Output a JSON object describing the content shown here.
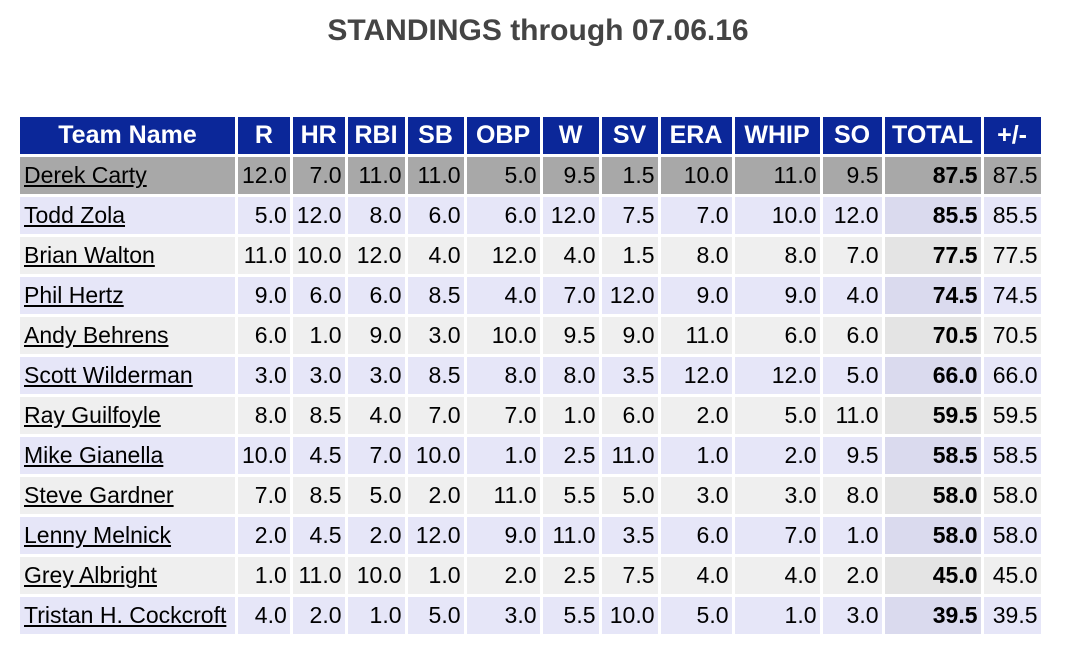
{
  "title": "STANDINGS through 07.06.16",
  "headers": [
    "Team Name",
    "R",
    "HR",
    "RBI",
    "SB",
    "OBP",
    "W",
    "SV",
    "ERA",
    "WHIP",
    "SO",
    "TOTAL",
    "+/-"
  ],
  "rows": [
    {
      "name": "Derek Carty",
      "vals": [
        "12.0",
        "7.0",
        "11.0",
        "11.0",
        "5.0",
        "9.5",
        "1.5",
        "10.0",
        "11.0",
        "9.5"
      ],
      "total": "87.5",
      "pm": "87.5"
    },
    {
      "name": "Todd Zola",
      "vals": [
        "5.0",
        "12.0",
        "8.0",
        "6.0",
        "6.0",
        "12.0",
        "7.5",
        "7.0",
        "10.0",
        "12.0"
      ],
      "total": "85.5",
      "pm": "85.5"
    },
    {
      "name": "Brian Walton",
      "vals": [
        "11.0",
        "10.0",
        "12.0",
        "4.0",
        "12.0",
        "4.0",
        "1.5",
        "8.0",
        "8.0",
        "7.0"
      ],
      "total": "77.5",
      "pm": "77.5"
    },
    {
      "name": "Phil Hertz",
      "vals": [
        "9.0",
        "6.0",
        "6.0",
        "8.5",
        "4.0",
        "7.0",
        "12.0",
        "9.0",
        "9.0",
        "4.0"
      ],
      "total": "74.5",
      "pm": "74.5"
    },
    {
      "name": "Andy Behrens",
      "vals": [
        "6.0",
        "1.0",
        "9.0",
        "3.0",
        "10.0",
        "9.5",
        "9.0",
        "11.0",
        "6.0",
        "6.0"
      ],
      "total": "70.5",
      "pm": "70.5"
    },
    {
      "name": "Scott Wilderman",
      "vals": [
        "3.0",
        "3.0",
        "3.0",
        "8.5",
        "8.0",
        "8.0",
        "3.5",
        "12.0",
        "12.0",
        "5.0"
      ],
      "total": "66.0",
      "pm": "66.0"
    },
    {
      "name": "Ray Guilfoyle",
      "vals": [
        "8.0",
        "8.5",
        "4.0",
        "7.0",
        "7.0",
        "1.0",
        "6.0",
        "2.0",
        "5.0",
        "11.0"
      ],
      "total": "59.5",
      "pm": "59.5"
    },
    {
      "name": "Mike Gianella",
      "vals": [
        "10.0",
        "4.5",
        "7.0",
        "10.0",
        "1.0",
        "2.5",
        "11.0",
        "1.0",
        "2.0",
        "9.5"
      ],
      "total": "58.5",
      "pm": "58.5"
    },
    {
      "name": "Steve Gardner",
      "vals": [
        "7.0",
        "8.5",
        "5.0",
        "2.0",
        "11.0",
        "5.5",
        "5.0",
        "3.0",
        "3.0",
        "8.0"
      ],
      "total": "58.0",
      "pm": "58.0"
    },
    {
      "name": "Lenny Melnick",
      "vals": [
        "2.0",
        "4.5",
        "2.0",
        "12.0",
        "9.0",
        "11.0",
        "3.5",
        "6.0",
        "7.0",
        "1.0"
      ],
      "total": "58.0",
      "pm": "58.0"
    },
    {
      "name": "Grey Albright",
      "vals": [
        "1.0",
        "11.0",
        "10.0",
        "1.0",
        "2.0",
        "2.5",
        "7.5",
        "4.0",
        "4.0",
        "2.0"
      ],
      "total": "45.0",
      "pm": "45.0"
    },
    {
      "name": "Tristan H. Cockcroft",
      "vals": [
        "4.0",
        "2.0",
        "1.0",
        "5.0",
        "3.0",
        "5.5",
        "10.0",
        "5.0",
        "1.0",
        "3.0"
      ],
      "total": "39.5",
      "pm": "39.5"
    }
  ],
  "colors": {
    "header_bg": "#0b2799",
    "header_text": "#ffffff",
    "highlight_row": "#a8a8a8",
    "row_odd": "#efefef",
    "row_even": "#e6e6f8",
    "title_text": "#444444"
  }
}
